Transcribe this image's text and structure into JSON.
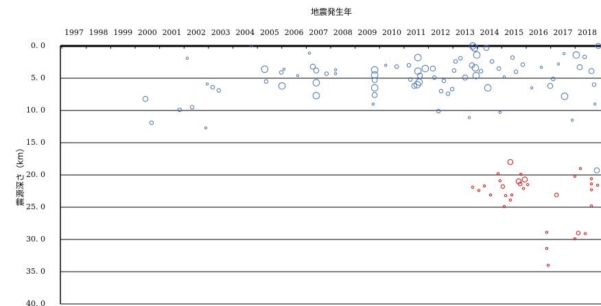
{
  "chart_data": {
    "type": "scatter",
    "title": "地震発生年",
    "y_label": "震源深さ（km）",
    "xlim": [
      1996.44,
      2018.56
    ],
    "xticks": [
      1997,
      1998,
      1999,
      2000,
      2001,
      2002,
      2003,
      2004,
      2005,
      2006,
      2007,
      2008,
      2009,
      2010,
      2011,
      2012,
      2013,
      2014,
      2015,
      2016,
      2017,
      2018
    ],
    "ylim": [
      0,
      40
    ],
    "y_reversed": true,
    "yticks": [
      {
        "value": 0,
        "label": "0. 0"
      },
      {
        "value": 5,
        "label": "5. 0"
      },
      {
        "value": 10,
        "label": "10. 0"
      },
      {
        "value": 15,
        "label": "15. 0"
      },
      {
        "value": 20,
        "label": "20. 0"
      },
      {
        "value": 25,
        "label": "25. 0"
      },
      {
        "value": 30,
        "label": "30. 0"
      },
      {
        "value": 35,
        "label": "35. 0"
      },
      {
        "value": 40,
        "label": "40. 0"
      }
    ],
    "grid": true,
    "series": [
      {
        "color": "#4472c4",
        "x": [
          1999.92,
          2000.17,
          2001.32,
          2001.83,
          2001.63,
          2002.39,
          2002.45,
          2002.67,
          2002.92,
          2004.8,
          2004.86,
          2005.51,
          2005.48,
          2005.59,
          2006.15,
          2006.77,
          2006.91,
          2006.91,
          2006.91,
          2006.63,
          2007.33,
          2007.7,
          2007.7,
          2009.3,
          2009.3,
          2009.3,
          2009.3,
          2009.3,
          2009.24,
          2009.75,
          2010.2,
          2010.7,
          2010.76,
          2010.92,
          2011.12,
          2011.04,
          2011.07,
          2011.07,
          2011.15,
          2011.37,
          2011.68,
          2011.74,
          2011.91,
          2012.02,
          2012.13,
          2012.3,
          2012.47,
          2012.55,
          2012.61,
          2012.81,
          2013.0,
          2013.28,
          2013.31,
          2013.39,
          2013.48,
          2013.45,
          2013.42,
          2013.17,
          2013.65,
          2013.87,
          2013.93,
          2014.1,
          2014.38,
          2014.43,
          2014.6,
          2014.94,
          2015.08,
          2015.36,
          2015.73,
          2016.12,
          2016.48,
          2016.6,
          2016.82,
          2017.05,
          2017.07,
          2017.38,
          2017.55,
          2017.69,
          2017.89,
          2018.17,
          2018.31,
          2018.28,
          2018.39,
          2018.45,
          2004.25
        ],
        "values": [
          8.2,
          11.9,
          9.9,
          9.5,
          1.9,
          12.7,
          5.9,
          6.4,
          6.9,
          3.6,
          5.5,
          6.2,
          4.1,
          3.6,
          4.6,
          3.2,
          3.8,
          5.7,
          7.7,
          1.1,
          4.3,
          3.7,
          4.3,
          3.7,
          4.5,
          5.3,
          6.5,
          7.6,
          9.0,
          3.0,
          3.2,
          3.0,
          5.2,
          6.2,
          5.6,
          6.0,
          1.8,
          3.9,
          4.6,
          3.5,
          3.5,
          4.9,
          10.1,
          7.0,
          5.4,
          7.4,
          6.7,
          3.8,
          2.4,
          1.9,
          4.9,
          3.0,
          0,
          0.3,
          1.4,
          4.6,
          3.4,
          11.1,
          3.9,
          0.3,
          6.5,
          2.4,
          3.5,
          10.3,
          4.8,
          1.8,
          4.0,
          2.9,
          6.5,
          3.3,
          6.2,
          5.1,
          2.8,
          1.2,
          7.8,
          11.5,
          1.4,
          3.3,
          1.7,
          3.9,
          9.0,
          6.0,
          19.3,
          0,
          0
        ],
        "sizes": [
          3,
          2,
          2,
          2,
          1,
          1,
          1,
          2,
          2,
          4,
          2,
          4,
          2,
          1,
          1,
          3,
          3,
          4,
          4,
          1,
          2,
          1,
          1,
          4,
          4,
          3,
          4,
          3,
          1,
          1,
          2,
          2,
          2,
          3,
          4,
          4,
          4,
          4,
          3,
          4,
          3,
          2,
          2,
          2,
          2,
          2,
          2,
          2,
          2,
          2,
          3,
          3,
          4,
          4,
          4,
          4,
          4,
          1,
          2,
          3,
          4,
          2,
          2,
          1,
          1,
          2,
          2,
          2,
          1,
          1,
          3,
          2,
          1,
          1,
          4,
          1,
          4,
          3,
          2,
          3,
          1,
          2,
          3,
          3,
          1
        ]
      },
      {
        "color": "#ff0000",
        "x": [
          2014.85,
          2014.35,
          2014.43,
          2014.54,
          2014.66,
          2014.6,
          2013.31,
          2013.56,
          2013.79,
          2014.04,
          2014.85,
          2014.91,
          2015.19,
          2015.25,
          2015.44,
          2015.28,
          2015.39,
          2015.56,
          2016.74,
          2016.34,
          2016.34,
          2016.4,
          2017.49,
          2017.63,
          2017.92,
          2017.72,
          2017.49,
          2018.17,
          2018.17,
          2018.17,
          2018.17,
          2018.42
        ],
        "values": [
          18.0,
          19.8,
          20.9,
          21.8,
          23.2,
          24.9,
          21.9,
          22.4,
          21.7,
          23.1,
          23.9,
          23.1,
          21.0,
          21.4,
          20.7,
          19.9,
          22.1,
          21.5,
          23.1,
          28.9,
          31.4,
          34.0,
          29.9,
          29.0,
          29.1,
          19.0,
          20.2,
          20.6,
          21.4,
          22.3,
          24.8,
          21.6
        ],
        "sizes": [
          3,
          1,
          1,
          2,
          1,
          1,
          1,
          1,
          1,
          1,
          1,
          1,
          3,
          2,
          3,
          1,
          1,
          1,
          2,
          1,
          1,
          1,
          1,
          2,
          1,
          1,
          1,
          1,
          1,
          1,
          1,
          1
        ]
      }
    ]
  }
}
